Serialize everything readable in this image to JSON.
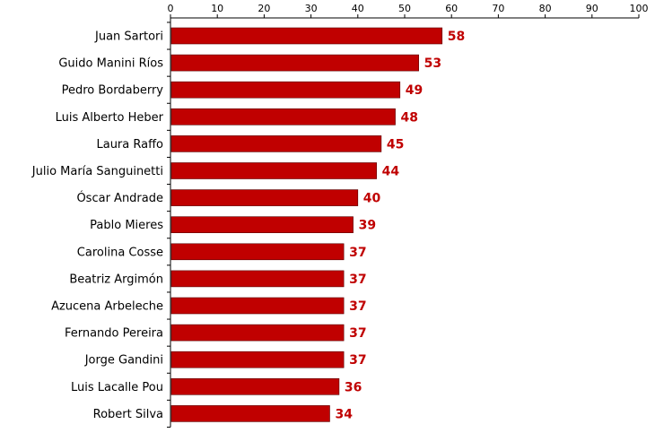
{
  "chart_data": {
    "type": "bar",
    "orientation": "horizontal",
    "title": "",
    "xlabel": "",
    "ylabel": "",
    "xlim": [
      0,
      100
    ],
    "x_ticks": [
      0,
      10,
      20,
      30,
      40,
      50,
      60,
      70,
      80,
      90,
      100
    ],
    "x_axis_position": "top",
    "grid": false,
    "legend": "none",
    "bar_color": "#c00000",
    "label_color": "#c00000",
    "categories": [
      "Juan Sartori",
      "Guido Manini Ríos",
      "Pedro Bordaberry",
      "Luis Alberto Heber",
      "Laura Raffo",
      "Julio María Sanguinetti",
      "Óscar Andrade",
      "Pablo Mieres",
      "Carolina Cosse",
      "Beatriz Argimón",
      "Azucena Arbeleche",
      "Fernando Pereira",
      "Jorge Gandini",
      "Luis Lacalle Pou",
      "Robert Silva"
    ],
    "values": [
      58,
      53,
      49,
      48,
      45,
      44,
      40,
      39,
      37,
      37,
      37,
      37,
      37,
      36,
      34
    ]
  }
}
